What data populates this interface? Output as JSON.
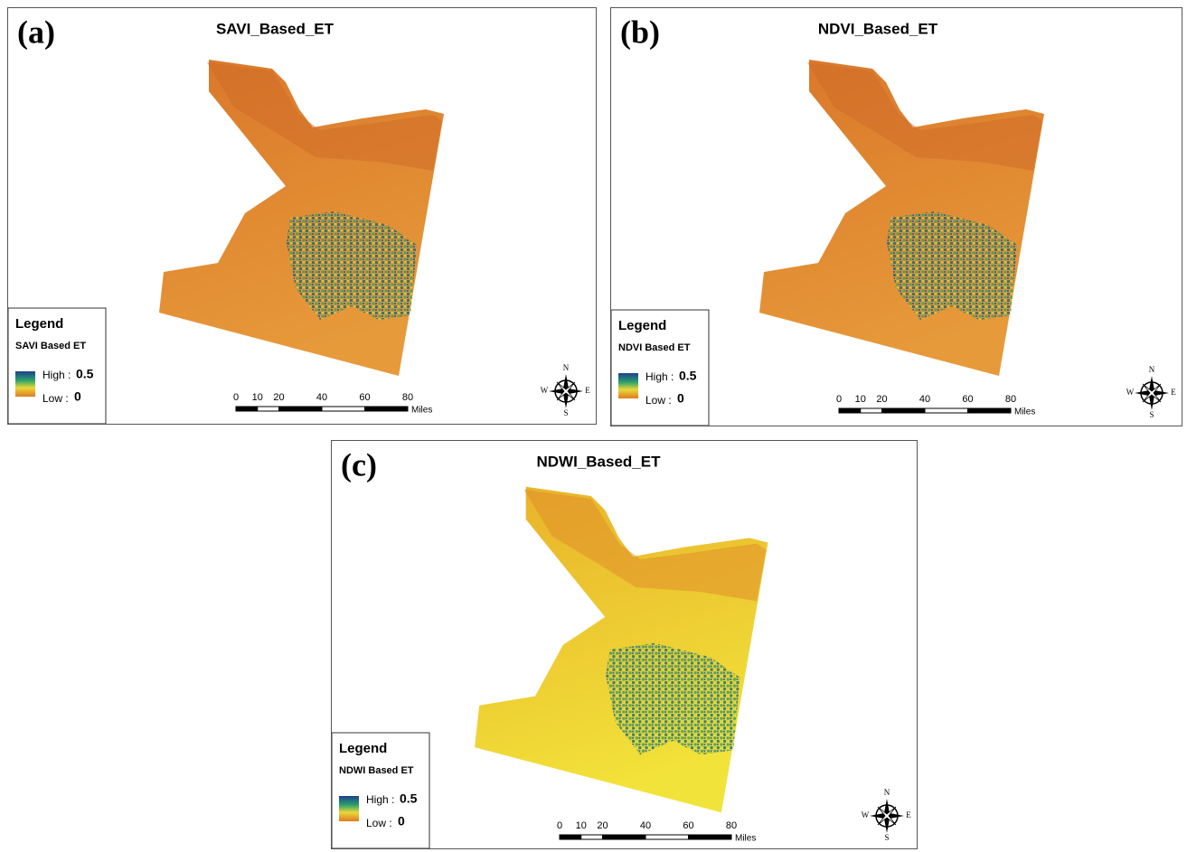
{
  "panels": [
    {
      "label": "(a)",
      "title": "SAVI_Based_ET",
      "legend": {
        "title": "Legend",
        "layer": "SAVI Based ET",
        "high_label": "High :",
        "high": 0.5,
        "low_label": "Low :",
        "low": 0
      },
      "scale": {
        "ticks": [
          0,
          10,
          20,
          40,
          60,
          80
        ],
        "unit": "Miles"
      },
      "compass": {
        "n": "N",
        "e": "E",
        "s": "S",
        "w": "W"
      }
    },
    {
      "label": "(b)",
      "title": "NDVI_Based_ET",
      "legend": {
        "title": "Legend",
        "layer": "NDVI Based ET",
        "high_label": "High :",
        "high": 0.5,
        "low_label": "Low :",
        "low": 0
      },
      "scale": {
        "ticks": [
          0,
          10,
          20,
          40,
          60,
          80
        ],
        "unit": "Miles"
      },
      "compass": {
        "n": "N",
        "e": "E",
        "s": "S",
        "w": "W"
      }
    },
    {
      "label": "(c)",
      "title": "NDWI_Based_ET",
      "legend": {
        "title": "Legend",
        "layer": "NDWI Based ET",
        "high_label": "High :",
        "high": 0.5,
        "low_label": "Low :",
        "low": 0
      },
      "scale": {
        "ticks": [
          0,
          10,
          20,
          40,
          60,
          80
        ],
        "unit": "Miles"
      },
      "compass": {
        "n": "N",
        "e": "E",
        "s": "S",
        "w": "W"
      }
    }
  ]
}
